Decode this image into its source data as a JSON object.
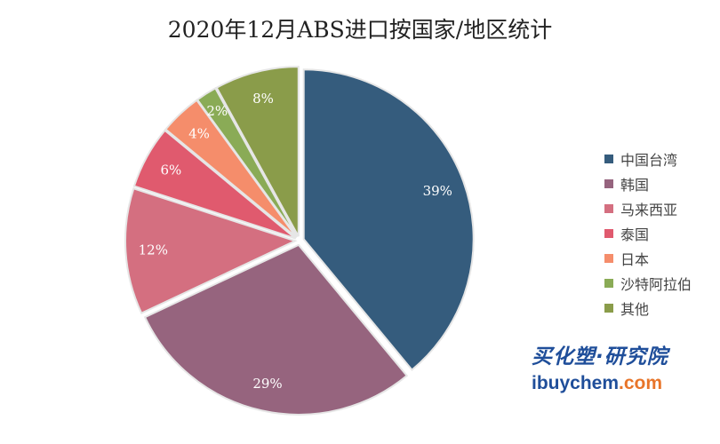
{
  "chart_data": {
    "type": "pie",
    "title": "2020年12月ABS进口按国家/地区统计",
    "categories": [
      "中国台湾",
      "韩国",
      "马来西亚",
      "泰国",
      "日本",
      "沙特阿拉伯",
      "其他"
    ],
    "values": [
      39,
      29,
      12,
      6,
      4,
      2,
      8
    ],
    "labels": [
      "39%",
      "29%",
      "12%",
      "6%",
      "4%",
      "2%",
      "8%"
    ],
    "colors": [
      "#355c7d",
      "#96647e",
      "#d46f80",
      "#e05a6e",
      "#f58d6b",
      "#8aab56",
      "#8a9c4a"
    ],
    "legend": "right"
  },
  "watermark": {
    "cn": "买化塑·研究院",
    "en_main": "ibuychem",
    "en_suffix": ".com"
  }
}
